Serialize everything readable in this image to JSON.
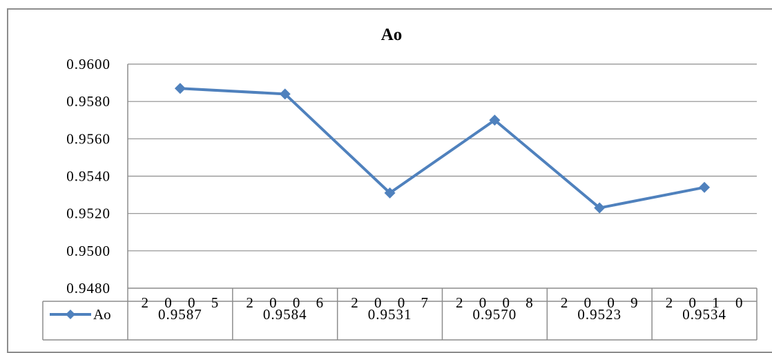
{
  "chart_data": {
    "type": "line",
    "title": "Ao",
    "categories": [
      "2 0 0 5",
      "2 0 0 6",
      "2 0 0 7",
      "2 0 0 8",
      "2 0 0 9",
      "2 0 1 0"
    ],
    "series": [
      {
        "name": "Ao",
        "values": [
          0.9587,
          0.9584,
          0.9531,
          0.957,
          0.9523,
          0.9534
        ],
        "value_labels": [
          "0.9587",
          "0.9584",
          "0.9531",
          "0.9570",
          "0.9523",
          "0.9534"
        ],
        "color": "#4f81bd",
        "marker": "diamond"
      }
    ],
    "yticks": [
      "0.9600",
      "0.9580",
      "0.9560",
      "0.9540",
      "0.9520",
      "0.9500",
      "0.9480"
    ],
    "ylim": [
      0.948,
      0.96
    ],
    "xlabel": "",
    "ylabel": "",
    "grid": true,
    "legend": "data-table-left",
    "data_table": true
  }
}
